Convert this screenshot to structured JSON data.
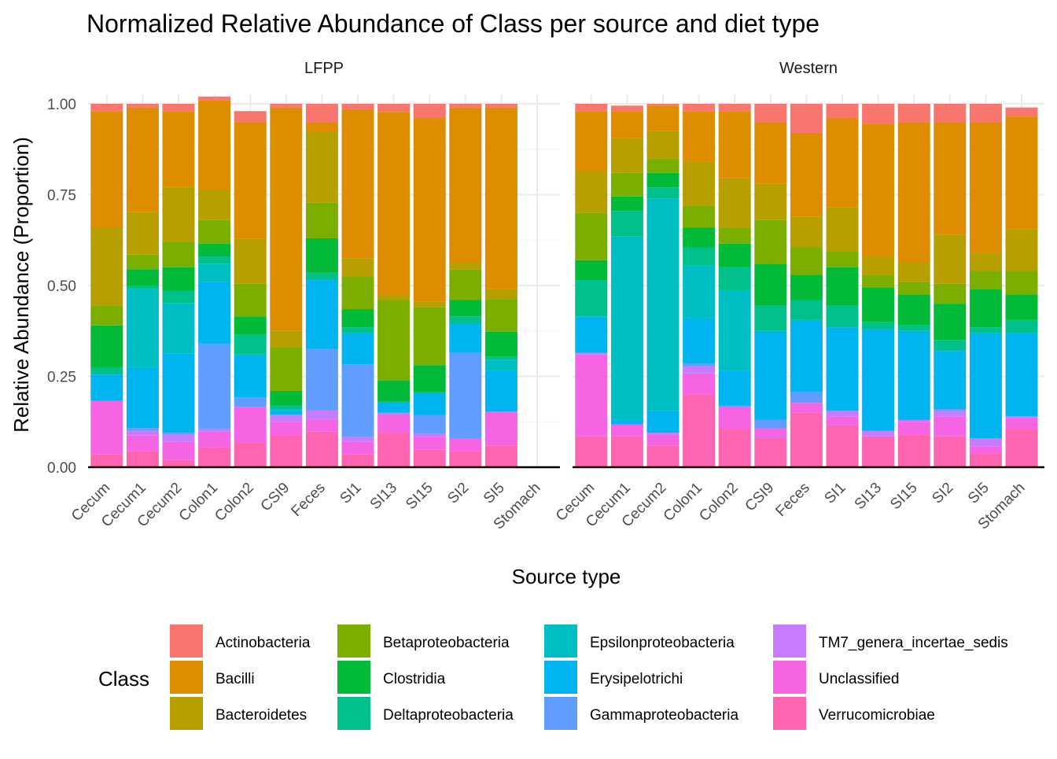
{
  "chart_data": {
    "type": "bar",
    "stacked": true,
    "title": "Normalized Relative Abundance of Class per source and diet type",
    "xlabel": "Source type",
    "ylabel": "Relative Abundance (Proportion)",
    "ylim": [
      0,
      1
    ],
    "yticks": [
      "0.00",
      "0.25",
      "0.50",
      "0.75",
      "1.00"
    ],
    "grid": true,
    "legend": {
      "title": "Class",
      "position": "bottom"
    },
    "categories": [
      "Cecum",
      "Cecum1",
      "Cecum2",
      "Colon1",
      "Colon2",
      "CSI9",
      "Feces",
      "SI1",
      "SI13",
      "SI15",
      "SI2",
      "SI5",
      "Stomach"
    ],
    "classes": [
      {
        "name": "Actinobacteria",
        "color": "#F8766D"
      },
      {
        "name": "Bacilli",
        "color": "#DE8C00"
      },
      {
        "name": "Bacteroidetes",
        "color": "#B79F00"
      },
      {
        "name": "Betaproteobacteria",
        "color": "#7CAE00"
      },
      {
        "name": "Clostridia",
        "color": "#00BA38"
      },
      {
        "name": "Deltaproteobacteria",
        "color": "#00C08B"
      },
      {
        "name": "Epsilonproteobacteria",
        "color": "#00BFC4"
      },
      {
        "name": "Erysipelotrichi",
        "color": "#00B4F0"
      },
      {
        "name": "Gammaproteobacteria",
        "color": "#619CFF"
      },
      {
        "name": "TM7_genera_incertae_sedis",
        "color": "#C77CFF"
      },
      {
        "name": "Unclassified",
        "color": "#F564E3"
      },
      {
        "name": "Verrucomicrobiae",
        "color": "#FF64B0"
      }
    ],
    "stack_order_bottom_to_top": [
      "Verrucomicrobiae",
      "Unclassified",
      "TM7_genera_incertae_sedis",
      "Gammaproteobacteria",
      "Erysipelotrichi",
      "Epsilonproteobacteria",
      "Deltaproteobacteria",
      "Clostridia",
      "Betaproteobacteria",
      "Bacteroidetes",
      "Bacilli",
      "Actinobacteria"
    ],
    "panels": [
      {
        "name": "LFPP",
        "bars": {
          "Cecum": {
            "Verrucomicrobiae": 0.035,
            "Unclassified": 0.148,
            "TM7_genera_incertae_sedis": 0.0,
            "Gammaproteobacteria": 0.0,
            "Erysipelotrichi": 0.072,
            "Epsilonproteobacteria": 0.0,
            "Deltaproteobacteria": 0.02,
            "Clostridia": 0.115,
            "Betaproteobacteria": 0.055,
            "Bacteroidetes": 0.213,
            "Bacilli": 0.322,
            "Actinobacteria": 0.02
          },
          "Cecum1": {
            "Verrucomicrobiae": 0.045,
            "Unclassified": 0.042,
            "TM7_genera_incertae_sedis": 0.013,
            "Gammaproteobacteria": 0.008,
            "Erysipelotrichi": 0.167,
            "Epsilonproteobacteria": 0.215,
            "Deltaproteobacteria": 0.01,
            "Clostridia": 0.045,
            "Betaproteobacteria": 0.04,
            "Bacteroidetes": 0.118,
            "Bacilli": 0.287,
            "Actinobacteria": 0.01
          },
          "Cecum2": {
            "Verrucomicrobiae": 0.02,
            "Unclassified": 0.05,
            "TM7_genera_incertae_sedis": 0.02,
            "Gammaproteobacteria": 0.005,
            "Erysipelotrichi": 0.217,
            "Epsilonproteobacteria": 0.14,
            "Deltaproteobacteria": 0.033,
            "Clostridia": 0.065,
            "Betaproteobacteria": 0.07,
            "Bacteroidetes": 0.152,
            "Bacilli": 0.208,
            "Actinobacteria": 0.02
          },
          "Colon1": {
            "Verrucomicrobiae": 0.055,
            "Unclassified": 0.043,
            "TM7_genera_incertae_sedis": 0.008,
            "Gammaproteobacteria": 0.234,
            "Erysipelotrichi": 0.17,
            "Epsilonproteobacteria": 0.05,
            "Deltaproteobacteria": 0.02,
            "Clostridia": 0.035,
            "Betaproteobacteria": 0.065,
            "Bacteroidetes": 0.083,
            "Bacilli": 0.247,
            "Actinobacteria": 0.01
          },
          "Colon2": {
            "Verrucomicrobiae": 0.068,
            "Unclassified": 0.097,
            "TM7_genera_incertae_sedis": 0.0,
            "Gammaproteobacteria": 0.027,
            "Erysipelotrichi": 0.118,
            "Epsilonproteobacteria": 0.0,
            "Deltaproteobacteria": 0.055,
            "Clostridia": 0.05,
            "Betaproteobacteria": 0.09,
            "Bacteroidetes": 0.123,
            "Bacilli": 0.322,
            "Actinobacteria": 0.03
          },
          "CSI9": {
            "Verrucomicrobiae": 0.088,
            "Unclassified": 0.037,
            "TM7_genera_incertae_sedis": 0.02,
            "Gammaproteobacteria": 0.0,
            "Erysipelotrichi": 0.01,
            "Epsilonproteobacteria": 0.005,
            "Deltaproteobacteria": 0.01,
            "Clostridia": 0.04,
            "Betaproteobacteria": 0.12,
            "Bacteroidetes": 0.046,
            "Bacilli": 0.614,
            "Actinobacteria": 0.01
          },
          "Feces": {
            "Verrucomicrobiae": 0.098,
            "Unclassified": 0.032,
            "TM7_genera_incertae_sedis": 0.027,
            "Gammaproteobacteria": 0.168,
            "Erysipelotrichi": 0.19,
            "Epsilonproteobacteria": 0.0,
            "Deltaproteobacteria": 0.02,
            "Clostridia": 0.095,
            "Betaproteobacteria": 0.098,
            "Bacteroidetes": 0.194,
            "Bacilli": 0.026,
            "Actinobacteria": 0.052
          },
          "SI1": {
            "Verrucomicrobiae": 0.035,
            "Unclassified": 0.035,
            "TM7_genera_incertae_sedis": 0.013,
            "Gammaproteobacteria": 0.2,
            "Erysipelotrichi": 0.087,
            "Epsilonproteobacteria": 0.0,
            "Deltaproteobacteria": 0.015,
            "Clostridia": 0.05,
            "Betaproteobacteria": 0.09,
            "Bacteroidetes": 0.05,
            "Bacilli": 0.41,
            "Actinobacteria": 0.015
          },
          "SI13": {
            "Verrucomicrobiae": 0.095,
            "Unclassified": 0.05,
            "TM7_genera_incertae_sedis": 0.005,
            "Gammaproteobacteria": 0.0,
            "Erysipelotrichi": 0.03,
            "Epsilonproteobacteria": 0.0,
            "Deltaproteobacteria": 0.0,
            "Clostridia": 0.058,
            "Betaproteobacteria": 0.222,
            "Bacteroidetes": 0.015,
            "Bacilli": 0.503,
            "Actinobacteria": 0.022
          },
          "SI15": {
            "Verrucomicrobiae": 0.048,
            "Unclassified": 0.035,
            "TM7_genera_incertae_sedis": 0.01,
            "Gammaproteobacteria": 0.05,
            "Erysipelotrichi": 0.063,
            "Epsilonproteobacteria": 0.0,
            "Deltaproteobacteria": 0.0,
            "Clostridia": 0.075,
            "Betaproteobacteria": 0.16,
            "Bacteroidetes": 0.015,
            "Bacilli": 0.505,
            "Actinobacteria": 0.039
          },
          "SI2": {
            "Verrucomicrobiae": 0.045,
            "Unclassified": 0.035,
            "TM7_genera_incertae_sedis": 0.0,
            "Gammaproteobacteria": 0.235,
            "Erysipelotrichi": 0.08,
            "Epsilonproteobacteria": 0.0,
            "Deltaproteobacteria": 0.02,
            "Clostridia": 0.045,
            "Betaproteobacteria": 0.085,
            "Bacteroidetes": 0.02,
            "Bacilli": 0.425,
            "Actinobacteria": 0.01
          },
          "SI5": {
            "Verrucomicrobiae": 0.06,
            "Unclassified": 0.093,
            "TM7_genera_incertae_sedis": 0.0,
            "Gammaproteobacteria": 0.0,
            "Erysipelotrichi": 0.112,
            "Epsilonproteobacteria": 0.03,
            "Deltaproteobacteria": 0.01,
            "Clostridia": 0.068,
            "Betaproteobacteria": 0.09,
            "Bacteroidetes": 0.027,
            "Bacilli": 0.5,
            "Actinobacteria": 0.01
          },
          "Stomach": null
        }
      },
      {
        "name": "Western",
        "bars": {
          "Cecum": {
            "Verrucomicrobiae": 0.085,
            "Unclassified": 0.225,
            "TM7_genera_incertae_sedis": 0.005,
            "Gammaproteobacteria": 0.0,
            "Erysipelotrichi": 0.1,
            "Epsilonproteobacteria": 0.0,
            "Deltaproteobacteria": 0.1,
            "Clostridia": 0.055,
            "Betaproteobacteria": 0.13,
            "Bacteroidetes": 0.115,
            "Bacilli": 0.165,
            "Actinobacteria": 0.02
          },
          "Cecum1": {
            "Verrucomicrobiae": 0.085,
            "Unclassified": 0.033,
            "TM7_genera_incertae_sedis": 0.0,
            "Gammaproteobacteria": 0.0,
            "Erysipelotrichi": 0.012,
            "Epsilonproteobacteria": 0.505,
            "Deltaproteobacteria": 0.07,
            "Clostridia": 0.04,
            "Betaproteobacteria": 0.065,
            "Bacteroidetes": 0.095,
            "Bacilli": 0.075,
            "Actinobacteria": 0.015
          },
          "Cecum2": {
            "Verrucomicrobiae": 0.06,
            "Unclassified": 0.03,
            "TM7_genera_incertae_sedis": 0.005,
            "Gammaproteobacteria": 0.0,
            "Erysipelotrichi": 0.06,
            "Epsilonproteobacteria": 0.585,
            "Deltaproteobacteria": 0.03,
            "Clostridia": 0.04,
            "Betaproteobacteria": 0.04,
            "Bacteroidetes": 0.075,
            "Bacilli": 0.07,
            "Actinobacteria": 0.005
          },
          "Colon1": {
            "Verrucomicrobiae": 0.2,
            "Unclassified": 0.058,
            "TM7_genera_incertae_sedis": 0.02,
            "Gammaproteobacteria": 0.007,
            "Erysipelotrichi": 0.125,
            "Epsilonproteobacteria": 0.145,
            "Deltaproteobacteria": 0.05,
            "Clostridia": 0.055,
            "Betaproteobacteria": 0.06,
            "Bacteroidetes": 0.12,
            "Bacilli": 0.14,
            "Actinobacteria": 0.02
          },
          "Colon2": {
            "Verrucomicrobiae": 0.105,
            "Unclassified": 0.06,
            "TM7_genera_incertae_sedis": 0.0,
            "Gammaproteobacteria": 0.005,
            "Erysipelotrichi": 0.095,
            "Epsilonproteobacteria": 0.22,
            "Deltaproteobacteria": 0.065,
            "Clostridia": 0.065,
            "Betaproteobacteria": 0.045,
            "Bacteroidetes": 0.135,
            "Bacilli": 0.185,
            "Actinobacteria": 0.02
          },
          "CSI9": {
            "Verrucomicrobiae": 0.08,
            "Unclassified": 0.027,
            "TM7_genera_incertae_sedis": 0.0,
            "Gammaproteobacteria": 0.023,
            "Erysipelotrichi": 0.245,
            "Epsilonproteobacteria": 0.0,
            "Deltaproteobacteria": 0.07,
            "Clostridia": 0.115,
            "Betaproteobacteria": 0.12,
            "Bacteroidetes": 0.1,
            "Bacilli": 0.17,
            "Actinobacteria": 0.05
          },
          "Feces": {
            "Verrucomicrobiae": 0.15,
            "Unclassified": 0.027,
            "TM7_genera_incertae_sedis": 0.0,
            "Gammaproteobacteria": 0.03,
            "Erysipelotrichi": 0.198,
            "Epsilonproteobacteria": 0.0,
            "Deltaproteobacteria": 0.055,
            "Clostridia": 0.07,
            "Betaproteobacteria": 0.075,
            "Bacteroidetes": 0.085,
            "Bacilli": 0.23,
            "Actinobacteria": 0.08
          },
          "SI1": {
            "Verrucomicrobiae": 0.115,
            "Unclassified": 0.025,
            "TM7_genera_incertae_sedis": 0.015,
            "Gammaproteobacteria": 0.0,
            "Erysipelotrichi": 0.23,
            "Epsilonproteobacteria": 0.0,
            "Deltaproteobacteria": 0.06,
            "Clostridia": 0.105,
            "Betaproteobacteria": 0.045,
            "Bacteroidetes": 0.12,
            "Bacilli": 0.245,
            "Actinobacteria": 0.04
          },
          "SI13": {
            "Verrucomicrobiae": 0.085,
            "Unclassified": 0.0,
            "TM7_genera_incertae_sedis": 0.015,
            "Gammaproteobacteria": 0.0,
            "Erysipelotrichi": 0.28,
            "Epsilonproteobacteria": 0.0,
            "Deltaproteobacteria": 0.02,
            "Clostridia": 0.095,
            "Betaproteobacteria": 0.035,
            "Bacteroidetes": 0.05,
            "Bacilli": 0.365,
            "Actinobacteria": 0.055
          },
          "SI15": {
            "Verrucomicrobiae": 0.09,
            "Unclassified": 0.035,
            "TM7_genera_incertae_sedis": 0.005,
            "Gammaproteobacteria": 0.0,
            "Erysipelotrichi": 0.245,
            "Epsilonproteobacteria": 0.0,
            "Deltaproteobacteria": 0.015,
            "Clostridia": 0.085,
            "Betaproteobacteria": 0.035,
            "Bacteroidetes": 0.055,
            "Bacilli": 0.385,
            "Actinobacteria": 0.05
          },
          "SI2": {
            "Verrucomicrobiae": 0.085,
            "Unclassified": 0.055,
            "TM7_genera_incertae_sedis": 0.015,
            "Gammaproteobacteria": 0.005,
            "Erysipelotrichi": 0.16,
            "Epsilonproteobacteria": 0.0,
            "Deltaproteobacteria": 0.03,
            "Clostridia": 0.1,
            "Betaproteobacteria": 0.055,
            "Bacteroidetes": 0.135,
            "Bacilli": 0.31,
            "Actinobacteria": 0.05
          },
          "SI5": {
            "Verrucomicrobiae": 0.038,
            "Unclassified": 0.02,
            "TM7_genera_incertae_sedis": 0.022,
            "Gammaproteobacteria": 0.0,
            "Erysipelotrichi": 0.29,
            "Epsilonproteobacteria": 0.0,
            "Deltaproteobacteria": 0.015,
            "Clostridia": 0.105,
            "Betaproteobacteria": 0.05,
            "Bacteroidetes": 0.05,
            "Bacilli": 0.36,
            "Actinobacteria": 0.05
          },
          "Stomach": {
            "Verrucomicrobiae": 0.105,
            "Unclassified": 0.03,
            "TM7_genera_incertae_sedis": 0.005,
            "Gammaproteobacteria": 0.0,
            "Erysipelotrichi": 0.23,
            "Epsilonproteobacteria": 0.0,
            "Deltaproteobacteria": 0.035,
            "Clostridia": 0.07,
            "Betaproteobacteria": 0.065,
            "Bacteroidetes": 0.115,
            "Bacilli": 0.31,
            "Actinobacteria": 0.025
          }
        }
      }
    ]
  }
}
